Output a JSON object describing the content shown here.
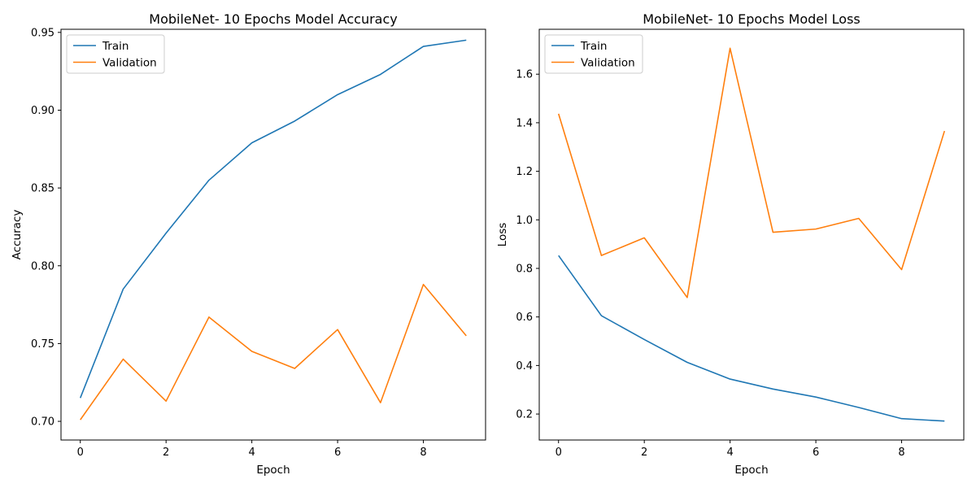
{
  "colors": {
    "train": "#1f77b4",
    "validation": "#ff7f0e",
    "axes": "#000000",
    "legend_border": "#cccccc",
    "background": "#ffffff"
  },
  "chart_data": [
    {
      "type": "line",
      "title": "MobileNet- 10 Epochs Model Accuracy",
      "xlabel": "Epoch",
      "ylabel": "Accuracy",
      "x": [
        0,
        1,
        2,
        3,
        4,
        5,
        6,
        7,
        8,
        9
      ],
      "xlim": [
        -0.45,
        9.45
      ],
      "ylim": [
        0.688,
        0.952
      ],
      "xticks": [
        0,
        2,
        4,
        6,
        8
      ],
      "xtick_labels": [
        "0",
        "2",
        "4",
        "6",
        "8"
      ],
      "yticks": [
        0.7,
        0.75,
        0.8,
        0.85,
        0.9,
        0.95
      ],
      "ytick_labels": [
        "0.70",
        "0.75",
        "0.80",
        "0.85",
        "0.90",
        "0.95"
      ],
      "grid": false,
      "legend_position": "upper-left",
      "series": [
        {
          "name": "Train",
          "color_key": "train",
          "values": [
            0.715,
            0.785,
            0.821,
            0.855,
            0.879,
            0.893,
            0.91,
            0.923,
            0.941,
            0.945
          ]
        },
        {
          "name": "Validation",
          "color_key": "validation",
          "values": [
            0.701,
            0.74,
            0.713,
            0.767,
            0.745,
            0.734,
            0.759,
            0.712,
            0.788,
            0.755
          ]
        }
      ]
    },
    {
      "type": "line",
      "title": "MobileNet- 10 Epochs Model Loss",
      "xlabel": "Epoch",
      "ylabel": "Loss",
      "x": [
        0,
        1,
        2,
        3,
        4,
        5,
        6,
        7,
        8,
        9
      ],
      "xlim": [
        -0.45,
        9.45
      ],
      "ylim": [
        0.093,
        1.785
      ],
      "xticks": [
        0,
        2,
        4,
        6,
        8
      ],
      "xtick_labels": [
        "0",
        "2",
        "4",
        "6",
        "8"
      ],
      "yticks": [
        0.2,
        0.4,
        0.6,
        0.8,
        1.0,
        1.2,
        1.4,
        1.6
      ],
      "ytick_labels": [
        "0.2",
        "0.4",
        "0.6",
        "0.8",
        "1.0",
        "1.2",
        "1.4",
        "1.6"
      ],
      "grid": false,
      "legend_position": "upper-left",
      "series": [
        {
          "name": "Train",
          "color_key": "train",
          "values": [
            0.853,
            0.605,
            0.507,
            0.413,
            0.344,
            0.303,
            0.27,
            0.227,
            0.181,
            0.171
          ]
        },
        {
          "name": "Validation",
          "color_key": "validation",
          "values": [
            1.437,
            0.853,
            0.926,
            0.68,
            1.707,
            0.949,
            0.962,
            1.006,
            0.795,
            1.366
          ]
        }
      ]
    }
  ]
}
